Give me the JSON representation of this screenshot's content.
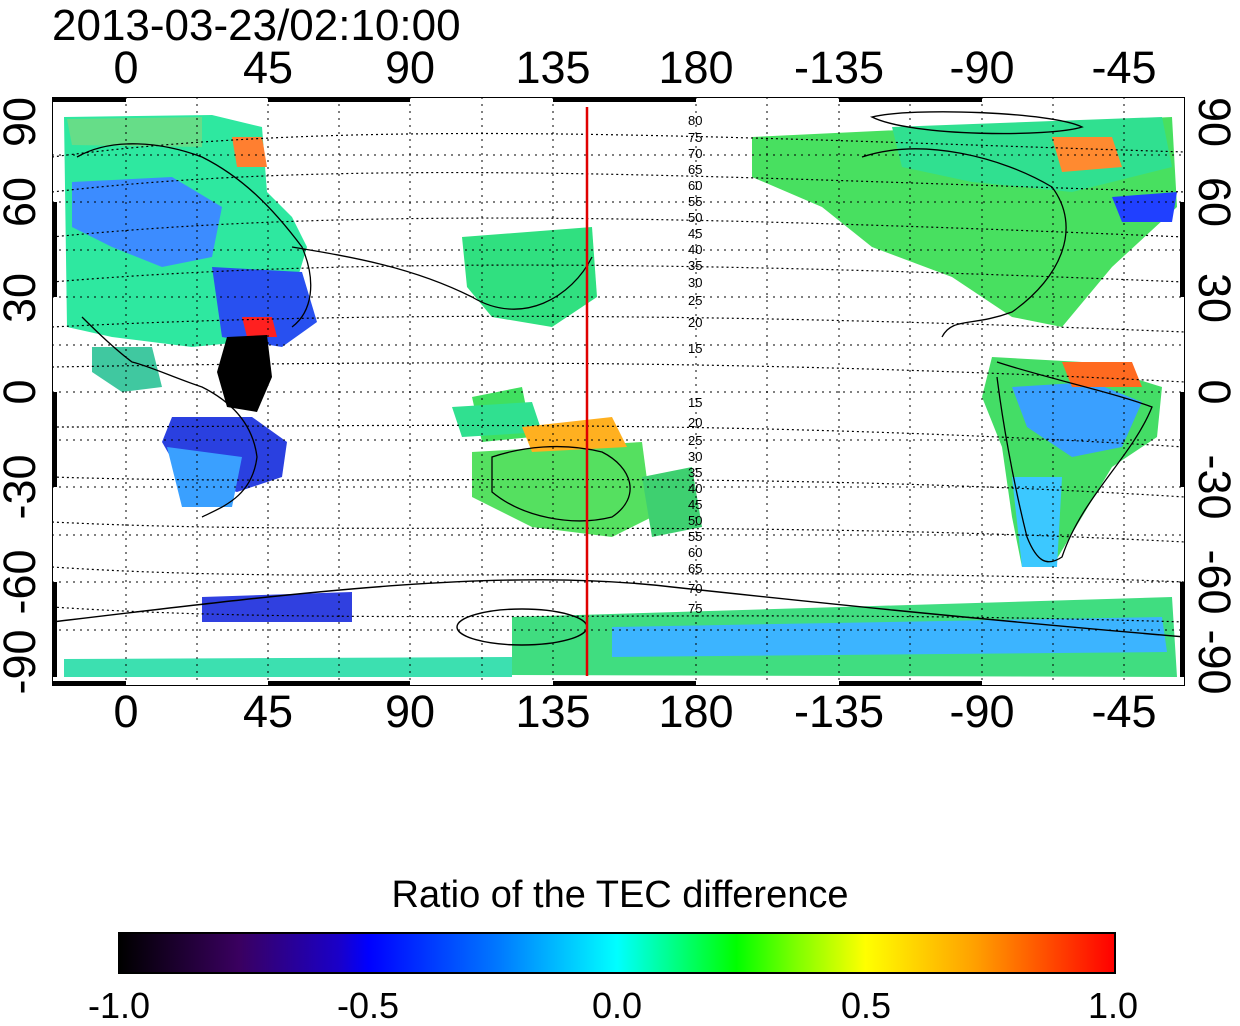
{
  "title": "2013-03-23/02:10:00",
  "x_ticks": [
    "0",
    "45",
    "90",
    "135",
    "180",
    "-135",
    "-90",
    "-45"
  ],
  "y_ticks": [
    "90",
    "60",
    "30",
    "0",
    "-30",
    "-60",
    "-90"
  ],
  "contour_labels_north": [
    "80",
    "75",
    "70",
    "65",
    "60",
    "55",
    "50",
    "45",
    "40",
    "35",
    "30",
    "25",
    "20",
    "15"
  ],
  "contour_labels_south": [
    "15",
    "20",
    "25",
    "30",
    "35",
    "40",
    "45",
    "50",
    "55",
    "60",
    "65",
    "70",
    "75"
  ],
  "red_line_longitude": 148,
  "colorbar": {
    "title": "Ratio of the TEC difference",
    "tick_labels": [
      "-1.0",
      "-0.5",
      "0.0",
      "0.5",
      "1.0"
    ],
    "colors": [
      "#000000",
      "#3a0060",
      "#0000ff",
      "#00ffff",
      "#00ff00",
      "#ffff00",
      "#ff0000"
    ]
  }
}
